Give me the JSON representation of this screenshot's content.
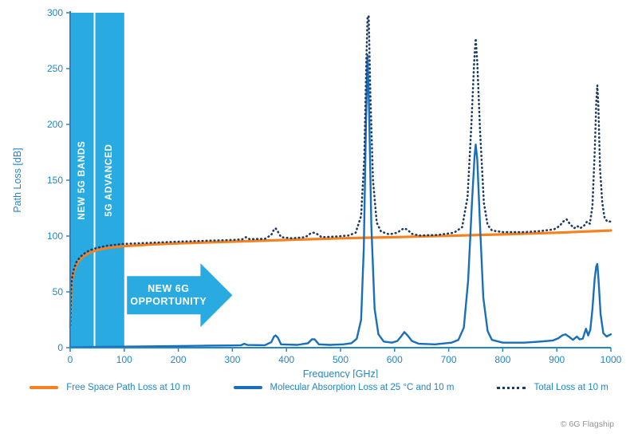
{
  "page": {
    "copyright": "© 6G Flagship"
  },
  "chart_data": {
    "type": "line",
    "title": "",
    "xlabel": "Frequency [GHz]",
    "ylabel": "Path Loss [dB]",
    "xlim": [
      0,
      1000
    ],
    "ylim": [
      0,
      300
    ],
    "x_ticks": [
      0,
      100,
      200,
      300,
      400,
      500,
      600,
      700,
      800,
      900,
      1000
    ],
    "y_ticks": [
      0,
      50,
      100,
      150,
      200,
      250,
      300
    ],
    "grid": false,
    "legend_position": "bottom",
    "axis_color": "#2386c8",
    "band": {
      "from": 0,
      "to": 100,
      "divider": 45,
      "color": "#29abe2",
      "labels": [
        {
          "text": "NEW 5G BANDS",
          "x": 21
        },
        {
          "text": "5G ADVANCED",
          "x": 71
        }
      ]
    },
    "arrow": {
      "line1": "NEW 6G",
      "line2": "OPPORTUNITY",
      "x_start": 105,
      "x_end": 300,
      "y_center": 47,
      "color": "#29abe2"
    },
    "series": [
      {
        "name": "Free Space Path Loss at 10 m",
        "color": "#f58220",
        "style": "solid",
        "width": 3.2,
        "points": [
          [
            0.5,
            18
          ],
          [
            1,
            35
          ],
          [
            1.5,
            45
          ],
          [
            2,
            51
          ],
          [
            3,
            58
          ],
          [
            4,
            62
          ],
          [
            6,
            67
          ],
          [
            8,
            70
          ],
          [
            12,
            75
          ],
          [
            18,
            79
          ],
          [
            25,
            82
          ],
          [
            35,
            85
          ],
          [
            50,
            87.5
          ],
          [
            70,
            89.5
          ],
          [
            100,
            91
          ],
          [
            150,
            92.5
          ],
          [
            200,
            93.5
          ],
          [
            300,
            95
          ],
          [
            400,
            96.5
          ],
          [
            500,
            98
          ],
          [
            600,
            99
          ],
          [
            700,
            100.2
          ],
          [
            800,
            101.5
          ],
          [
            900,
            103
          ],
          [
            1000,
            105
          ]
        ]
      },
      {
        "name": "Molecular Absorption Loss at 25 °C and 10 m",
        "color": "#1a6fba",
        "style": "solid",
        "width": 2.4,
        "points": [
          [
            0,
            0.3
          ],
          [
            60,
            0.8
          ],
          [
            150,
            1.2
          ],
          [
            250,
            1.8
          ],
          [
            300,
            2
          ],
          [
            316,
            2.2
          ],
          [
            322,
            3.5
          ],
          [
            328,
            2.4
          ],
          [
            360,
            2.2
          ],
          [
            372,
            5
          ],
          [
            377,
            10
          ],
          [
            380,
            11
          ],
          [
            384,
            9
          ],
          [
            390,
            3
          ],
          [
            420,
            2.5
          ],
          [
            440,
            4
          ],
          [
            447,
            7.5
          ],
          [
            452,
            7.5
          ],
          [
            460,
            3
          ],
          [
            480,
            2.5
          ],
          [
            505,
            3
          ],
          [
            520,
            4
          ],
          [
            530,
            8
          ],
          [
            538,
            25
          ],
          [
            543,
            90
          ],
          [
            547,
            200
          ],
          [
            550,
            262
          ],
          [
            553,
            210
          ],
          [
            557,
            110
          ],
          [
            563,
            35
          ],
          [
            570,
            12
          ],
          [
            580,
            5.5
          ],
          [
            595,
            4.5
          ],
          [
            605,
            6
          ],
          [
            612,
            10
          ],
          [
            618,
            14
          ],
          [
            624,
            11
          ],
          [
            632,
            6
          ],
          [
            645,
            3.5
          ],
          [
            675,
            3
          ],
          [
            705,
            4.5
          ],
          [
            718,
            7
          ],
          [
            728,
            18
          ],
          [
            736,
            60
          ],
          [
            743,
            130
          ],
          [
            748,
            172
          ],
          [
            750,
            182
          ],
          [
            753,
            168
          ],
          [
            758,
            110
          ],
          [
            764,
            45
          ],
          [
            772,
            15
          ],
          [
            780,
            7
          ],
          [
            800,
            4.5
          ],
          [
            840,
            4.5
          ],
          [
            870,
            5.5
          ],
          [
            893,
            6.5
          ],
          [
            903,
            8.5
          ],
          [
            910,
            11
          ],
          [
            916,
            12
          ],
          [
            922,
            10
          ],
          [
            930,
            7
          ],
          [
            937,
            10
          ],
          [
            942,
            7.5
          ],
          [
            948,
            8
          ],
          [
            954,
            17
          ],
          [
            958,
            11
          ],
          [
            962,
            16
          ],
          [
            966,
            35
          ],
          [
            970,
            62
          ],
          [
            973,
            73
          ],
          [
            975,
            75
          ],
          [
            977,
            62
          ],
          [
            981,
            30
          ],
          [
            986,
            13
          ],
          [
            992,
            10
          ],
          [
            1000,
            12
          ]
        ]
      },
      {
        "name": "Total Loss at 10 m",
        "color": "#1b3a64",
        "style": "dotted",
        "width": 2.6,
        "points": [
          [
            0.5,
            20
          ],
          [
            1,
            37
          ],
          [
            1.5,
            47
          ],
          [
            2,
            53
          ],
          [
            3,
            60
          ],
          [
            4,
            64
          ],
          [
            6,
            69
          ],
          [
            8,
            72
          ],
          [
            12,
            77
          ],
          [
            18,
            81
          ],
          [
            25,
            84
          ],
          [
            35,
            87
          ],
          [
            50,
            89.5
          ],
          [
            70,
            91.5
          ],
          [
            100,
            93
          ],
          [
            150,
            94
          ],
          [
            200,
            95
          ],
          [
            250,
            95.8
          ],
          [
            300,
            96.5
          ],
          [
            318,
            97
          ],
          [
            325,
            99
          ],
          [
            332,
            97.2
          ],
          [
            360,
            97.5
          ],
          [
            372,
            101
          ],
          [
            377,
            106
          ],
          [
            380,
            107
          ],
          [
            384,
            104
          ],
          [
            390,
            99
          ],
          [
            410,
            98
          ],
          [
            435,
            99
          ],
          [
            445,
            102.5
          ],
          [
            450,
            103
          ],
          [
            456,
            102
          ],
          [
            465,
            99
          ],
          [
            490,
            99.5
          ],
          [
            515,
            100.5
          ],
          [
            528,
            103
          ],
          [
            538,
            118
          ],
          [
            544,
            170
          ],
          [
            548,
            260
          ],
          [
            550,
            297
          ],
          [
            552,
            297
          ],
          [
            555,
            230
          ],
          [
            560,
            150
          ],
          [
            567,
            112
          ],
          [
            575,
            104
          ],
          [
            590,
            101.5
          ],
          [
            605,
            103
          ],
          [
            612,
            105.5
          ],
          [
            618,
            107
          ],
          [
            624,
            105.5
          ],
          [
            632,
            102
          ],
          [
            645,
            100.5
          ],
          [
            680,
            101
          ],
          [
            710,
            103
          ],
          [
            725,
            108
          ],
          [
            735,
            135
          ],
          [
            742,
            200
          ],
          [
            747,
            255
          ],
          [
            750,
            277
          ],
          [
            753,
            255
          ],
          [
            758,
            195
          ],
          [
            765,
            130
          ],
          [
            772,
            110
          ],
          [
            780,
            105
          ],
          [
            800,
            103.5
          ],
          [
            840,
            103.5
          ],
          [
            870,
            104.5
          ],
          [
            895,
            106
          ],
          [
            905,
            109
          ],
          [
            912,
            113
          ],
          [
            918,
            115
          ],
          [
            924,
            111
          ],
          [
            932,
            107
          ],
          [
            938,
            109
          ],
          [
            943,
            107
          ],
          [
            950,
            109
          ],
          [
            956,
            113
          ],
          [
            961,
            111
          ],
          [
            966,
            127
          ],
          [
            970,
            175
          ],
          [
            973,
            220
          ],
          [
            975,
            235
          ],
          [
            977,
            215
          ],
          [
            980,
            160
          ],
          [
            984,
            130
          ],
          [
            988,
            117
          ],
          [
            993,
            113
          ],
          [
            1000,
            113
          ]
        ]
      }
    ]
  }
}
